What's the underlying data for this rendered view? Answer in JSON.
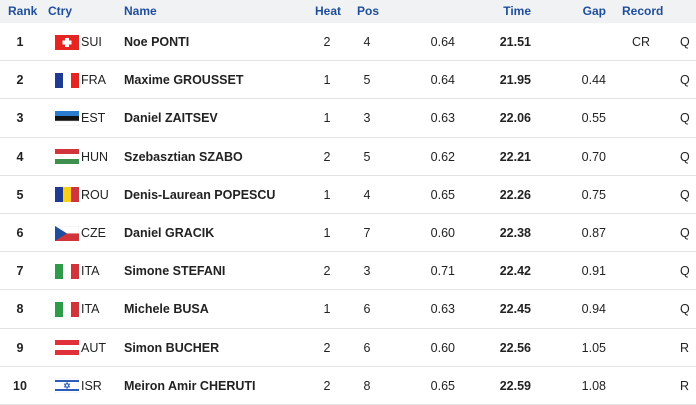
{
  "table": {
    "columns": {
      "rank": "Rank",
      "ctry": "Ctry",
      "name": "Name",
      "heat": "Heat",
      "pos": "Pos",
      "time": "Time",
      "gap": "Gap",
      "record": "Record"
    },
    "rows": [
      {
        "rank": "1",
        "ctry": "SUI",
        "name": "Noe PONTI",
        "heat": "2",
        "pos": "4",
        "rt": "0.64",
        "time": "21.51",
        "record": "CR",
        "q": "Q"
      },
      {
        "rank": "2",
        "ctry": "FRA",
        "name": "Maxime GROUSSET",
        "heat": "1",
        "pos": "5",
        "rt": "0.64",
        "time": "21.95",
        "gap": "0.44",
        "q": "Q"
      },
      {
        "rank": "3",
        "ctry": "EST",
        "name": "Daniel ZAITSEV",
        "heat": "1",
        "pos": "3",
        "rt": "0.63",
        "time": "22.06",
        "gap": "0.55",
        "q": "Q"
      },
      {
        "rank": "4",
        "ctry": "HUN",
        "name": "Szebasztian SZABO",
        "heat": "2",
        "pos": "5",
        "rt": "0.62",
        "time": "22.21",
        "gap": "0.70",
        "q": "Q"
      },
      {
        "rank": "5",
        "ctry": "ROU",
        "name": "Denis-Laurean POPESCU",
        "heat": "1",
        "pos": "4",
        "rt": "0.65",
        "time": "22.26",
        "gap": "0.75",
        "q": "Q"
      },
      {
        "rank": "6",
        "ctry": "CZE",
        "name": "Daniel GRACIK",
        "heat": "1",
        "pos": "7",
        "rt": "0.60",
        "time": "22.38",
        "gap": "0.87",
        "q": "Q"
      },
      {
        "rank": "7",
        "ctry": "ITA",
        "name": "Simone STEFANI",
        "heat": "2",
        "pos": "3",
        "rt": "0.71",
        "time": "22.42",
        "gap": "0.91",
        "q": "Q"
      },
      {
        "rank": "8",
        "ctry": "ITA",
        "name": "Michele BUSA",
        "heat": "1",
        "pos": "6",
        "rt": "0.63",
        "time": "22.45",
        "gap": "0.94",
        "q": "Q"
      },
      {
        "rank": "9",
        "ctry": "AUT",
        "name": "Simon BUCHER",
        "heat": "2",
        "pos": "6",
        "rt": "0.60",
        "time": "22.56",
        "gap": "1.05",
        "q": "R"
      },
      {
        "rank": "10",
        "ctry": "ISR",
        "name": "Meiron Amir CHERUTI",
        "heat": "2",
        "pos": "8",
        "rt": "0.65",
        "time": "22.59",
        "gap": "1.08",
        "q": "R"
      }
    ]
  }
}
